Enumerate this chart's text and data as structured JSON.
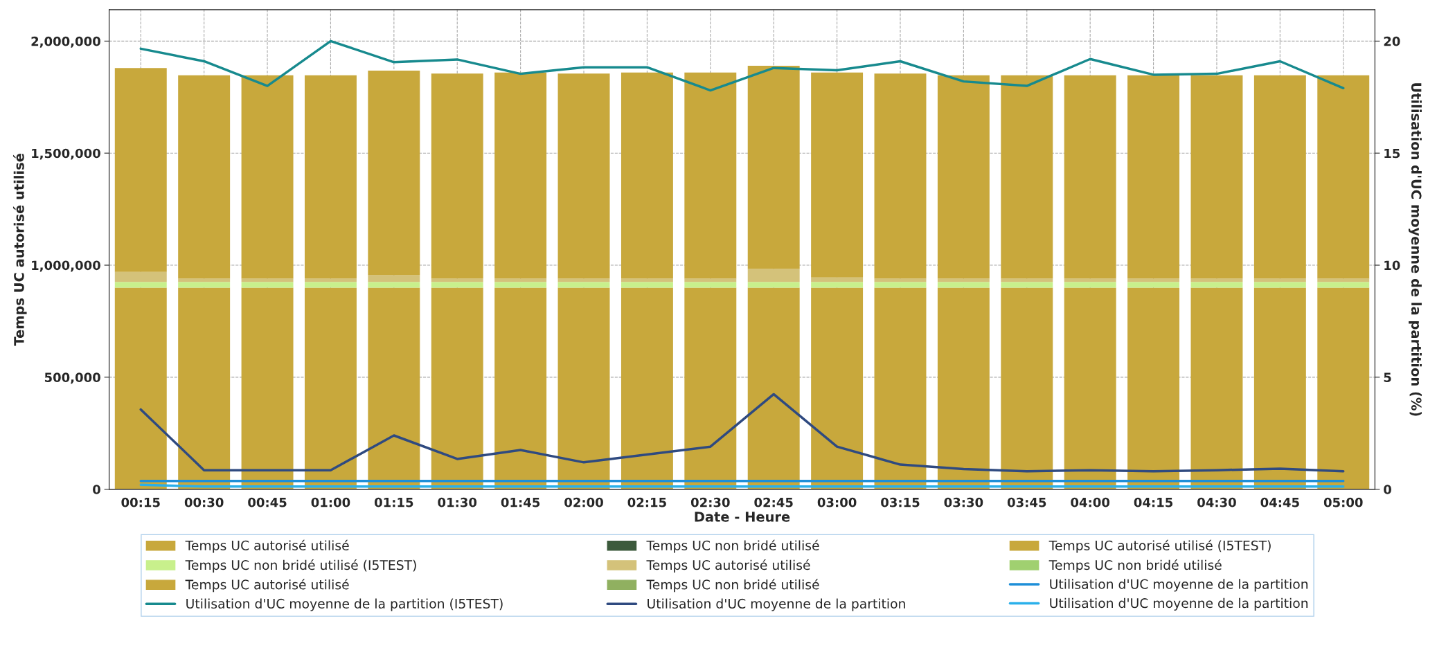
{
  "chart_data": {
    "type": "bar",
    "stacked": true,
    "categories": [
      "00:15",
      "00:30",
      "00:45",
      "01:00",
      "01:15",
      "01:30",
      "01:45",
      "02:00",
      "02:15",
      "02:30",
      "02:45",
      "03:00",
      "03:15",
      "03:30",
      "03:45",
      "04:00",
      "04:15",
      "04:30",
      "04:45",
      "05:00"
    ],
    "xlabel": "Date - Heure",
    "ylabel": "Temps UC autorisé utilisé",
    "y2label": "Utilisation d'UC moyenne de la partition (%)",
    "ylim": [
      0,
      2140000
    ],
    "yticks": [
      {
        "value": 0,
        "label": "0"
      },
      {
        "value": 500000,
        "label": "500,000"
      },
      {
        "value": 1000000,
        "label": "1,000,000"
      },
      {
        "value": 1500000,
        "label": "1,500,000"
      },
      {
        "value": 2000000,
        "label": "2,000,000"
      }
    ],
    "y2lim": [
      0,
      21.4
    ],
    "y2ticks": [
      0,
      5,
      10,
      15,
      20
    ],
    "grid": true,
    "legend": "bottom",
    "series": [
      {
        "name": "Temps UC autorisé utilisé",
        "color": "#c8a83c",
        "values": [
          900000,
          900000,
          900000,
          900000,
          900000,
          900000,
          900000,
          900000,
          900000,
          900000,
          900000,
          900000,
          900000,
          900000,
          900000,
          900000,
          900000,
          900000,
          900000,
          900000
        ]
      },
      {
        "name": "Temps UC non bridé utilisé",
        "color": "#3c5a3c",
        "values": [
          0,
          0,
          0,
          0,
          0,
          0,
          0,
          0,
          0,
          0,
          0,
          0,
          0,
          0,
          0,
          0,
          0,
          0,
          0,
          0
        ]
      },
      {
        "name": "Temps UC autorisé utilisé (I5TEST)",
        "color": "#c8a83c",
        "values": [
          0,
          0,
          0,
          0,
          0,
          0,
          0,
          0,
          0,
          0,
          0,
          0,
          0,
          0,
          0,
          0,
          0,
          0,
          0,
          0
        ]
      },
      {
        "name": "Temps UC non bridé utilisé (I5TEST)",
        "color": "#c8f08c",
        "values": [
          25000,
          25000,
          25000,
          25000,
          25000,
          25000,
          25000,
          25000,
          25000,
          25000,
          25000,
          25000,
          25000,
          25000,
          25000,
          25000,
          25000,
          25000,
          25000,
          25000
        ]
      },
      {
        "name": "Temps UC autorisé utilisé",
        "color": "#d4c27a",
        "values": [
          45000,
          15000,
          15000,
          15000,
          30000,
          15000,
          15000,
          15000,
          15000,
          15000,
          58000,
          20000,
          15000,
          15000,
          15000,
          15000,
          15000,
          15000,
          15000,
          15000
        ]
      },
      {
        "name": "Temps UC non bridé utilisé",
        "color": "#a0d070",
        "values": [
          0,
          0,
          0,
          0,
          0,
          0,
          0,
          0,
          0,
          0,
          0,
          0,
          0,
          0,
          0,
          0,
          0,
          0,
          0,
          0
        ]
      },
      {
        "name": "Temps UC autorisé utilisé",
        "color": "#c8a83c",
        "values": [
          910000,
          907000,
          907000,
          907000,
          913000,
          915000,
          920000,
          915000,
          920000,
          920000,
          907000,
          915000,
          915000,
          907000,
          907000,
          907000,
          907000,
          907000,
          907000,
          907000
        ]
      },
      {
        "name": "Temps UC non bridé utilisé",
        "color": "#90b060",
        "values": [
          0,
          0,
          0,
          0,
          0,
          0,
          0,
          0,
          0,
          0,
          0,
          0,
          0,
          0,
          0,
          0,
          0,
          0,
          0,
          0
        ]
      },
      {
        "name": "Utilisation d'UC moyenne de la partition",
        "type": "line",
        "axis": "y2",
        "color": "#1e8fd8",
        "values": [
          0.37,
          0.37,
          0.37,
          0.37,
          0.37,
          0.37,
          0.37,
          0.37,
          0.37,
          0.37,
          0.37,
          0.37,
          0.37,
          0.37,
          0.37,
          0.37,
          0.37,
          0.37,
          0.37,
          0.37
        ]
      },
      {
        "name": "Utilisation d'UC moyenne de la partition (I5TEST)",
        "type": "line",
        "axis": "y2",
        "color": "#178a8e",
        "values": [
          19.66,
          19.1,
          18.0,
          20.0,
          19.06,
          19.18,
          18.54,
          18.83,
          18.83,
          17.8,
          18.8,
          18.7,
          19.1,
          18.2,
          18.0,
          19.2,
          18.5,
          18.54,
          19.1,
          17.9
        ]
      },
      {
        "name": "Utilisation d'UC moyenne de la partition",
        "type": "line",
        "axis": "y2",
        "color": "#2f4a80",
        "values": [
          3.56,
          0.85,
          0.85,
          0.85,
          2.4,
          1.35,
          1.75,
          1.2,
          1.55,
          1.9,
          4.24,
          1.9,
          1.1,
          0.9,
          0.8,
          0.85,
          0.8,
          0.85,
          0.92,
          0.8
        ]
      },
      {
        "name": "Utilisation d'UC moyenne de la partition",
        "type": "line",
        "axis": "y2",
        "color": "#2ab0ea",
        "values": [
          0.2,
          0.12,
          0.12,
          0.12,
          0.12,
          0.12,
          0.12,
          0.12,
          0.12,
          0.12,
          0.12,
          0.12,
          0.12,
          0.12,
          0.12,
          0.12,
          0.12,
          0.12,
          0.12,
          0.12
        ]
      }
    ]
  }
}
